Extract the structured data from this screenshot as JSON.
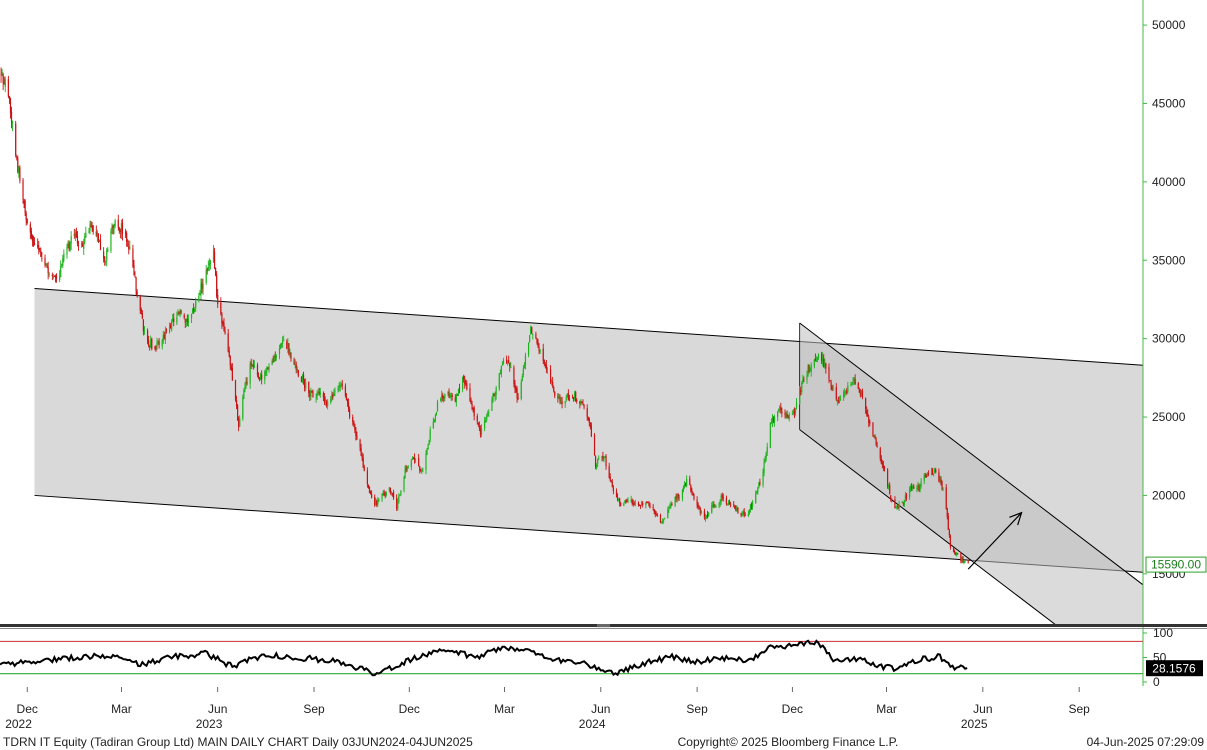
{
  "chart_data": [
    {
      "type": "candlestick",
      "price_axis": {
        "ticks": [
          50000,
          45000,
          40000,
          35000,
          30000,
          25000,
          20000,
          15000
        ],
        "tick_labels": [
          "50000",
          "45000",
          "40000",
          "35000",
          "30000",
          "25000",
          "20000",
          "15000"
        ],
        "range": [
          11800,
          51600
        ]
      },
      "last_price_label": "15590.00",
      "last_price_value": 15590,
      "time_axis": {
        "range": [
          "2022-11-05",
          "2025-11-01"
        ],
        "month_ticks": [
          {
            "label": "Dec",
            "date": "2022-12-01"
          },
          {
            "label": "Mar",
            "date": "2023-03-01"
          },
          {
            "label": "Jun",
            "date": "2023-06-01"
          },
          {
            "label": "Sep",
            "date": "2023-09-01"
          },
          {
            "label": "Dec",
            "date": "2023-12-01"
          },
          {
            "label": "Mar",
            "date": "2024-03-01"
          },
          {
            "label": "Jun",
            "date": "2024-06-01"
          },
          {
            "label": "Sep",
            "date": "2024-09-01"
          },
          {
            "label": "Dec",
            "date": "2024-12-01"
          },
          {
            "label": "Mar",
            "date": "2025-03-01"
          },
          {
            "label": "Jun",
            "date": "2025-06-01"
          },
          {
            "label": "Sep",
            "date": "2025-09-01"
          }
        ],
        "year_ticks": [
          {
            "label": "2022",
            "date": "2022-12-01"
          },
          {
            "label": "2023",
            "date": "2023-06-01"
          },
          {
            "label": "2024",
            "date": "2024-06-01"
          },
          {
            "label": "2025",
            "date": "2025-06-01"
          }
        ]
      },
      "price_path": [
        [
          "2022-11-05",
          47000
        ],
        [
          "2022-11-12",
          46000
        ],
        [
          "2022-11-18",
          43000
        ],
        [
          "2022-11-24",
          40000
        ],
        [
          "2022-11-30",
          37500
        ],
        [
          "2022-12-08",
          36000
        ],
        [
          "2022-12-16",
          35000
        ],
        [
          "2022-12-24",
          34000
        ],
        [
          "2022-12-30",
          33500
        ],
        [
          "2023-01-06",
          35500
        ],
        [
          "2023-01-14",
          36500
        ],
        [
          "2023-01-22",
          36000
        ],
        [
          "2023-01-30",
          37000
        ],
        [
          "2023-02-06",
          36500
        ],
        [
          "2023-02-14",
          35000
        ],
        [
          "2023-02-22",
          37500
        ],
        [
          "2023-03-01",
          37000
        ],
        [
          "2023-03-08",
          36000
        ],
        [
          "2023-03-16",
          33000
        ],
        [
          "2023-03-24",
          30000
        ],
        [
          "2023-04-01",
          29500
        ],
        [
          "2023-04-10",
          30000
        ],
        [
          "2023-04-18",
          31000
        ],
        [
          "2023-04-26",
          31500
        ],
        [
          "2023-05-04",
          31000
        ],
        [
          "2023-05-12",
          32500
        ],
        [
          "2023-05-20",
          34000
        ],
        [
          "2023-05-28",
          35500
        ],
        [
          "2023-06-01",
          32000
        ],
        [
          "2023-06-06",
          31000
        ],
        [
          "2023-06-12",
          29000
        ],
        [
          "2023-06-17",
          26500
        ],
        [
          "2023-06-21",
          24500
        ],
        [
          "2023-06-26",
          26500
        ],
        [
          "2023-07-03",
          28500
        ],
        [
          "2023-07-11",
          27500
        ],
        [
          "2023-07-19",
          28000
        ],
        [
          "2023-07-27",
          29000
        ],
        [
          "2023-08-04",
          30000
        ],
        [
          "2023-08-12",
          28500
        ],
        [
          "2023-08-20",
          27500
        ],
        [
          "2023-08-28",
          26500
        ],
        [
          "2023-09-05",
          26500
        ],
        [
          "2023-09-13",
          26000
        ],
        [
          "2023-09-21",
          26500
        ],
        [
          "2023-09-28",
          27000
        ],
        [
          "2023-10-06",
          25000
        ],
        [
          "2023-10-13",
          23500
        ],
        [
          "2023-10-21",
          21000
        ],
        [
          "2023-10-28",
          19300
        ],
        [
          "2023-11-05",
          20000
        ],
        [
          "2023-11-12",
          20500
        ],
        [
          "2023-11-19",
          19300
        ],
        [
          "2023-11-27",
          21500
        ],
        [
          "2023-12-05",
          22500
        ],
        [
          "2023-12-13",
          21500
        ],
        [
          "2023-12-21",
          24000
        ],
        [
          "2023-12-29",
          26000
        ],
        [
          "2024-01-06",
          26500
        ],
        [
          "2024-01-14",
          26000
        ],
        [
          "2024-01-22",
          27500
        ],
        [
          "2024-01-30",
          25500
        ],
        [
          "2024-02-07",
          24000
        ],
        [
          "2024-02-15",
          25500
        ],
        [
          "2024-02-23",
          27000
        ],
        [
          "2024-03-01",
          29000
        ],
        [
          "2024-03-08",
          28000
        ],
        [
          "2024-03-14",
          26000
        ],
        [
          "2024-03-20",
          28500
        ],
        [
          "2024-03-26",
          30500
        ],
        [
          "2024-04-02",
          29500
        ],
        [
          "2024-04-10",
          28000
        ],
        [
          "2024-04-18",
          26500
        ],
        [
          "2024-04-26",
          26000
        ],
        [
          "2024-05-04",
          26500
        ],
        [
          "2024-05-12",
          26000
        ],
        [
          "2024-05-20",
          25000
        ],
        [
          "2024-05-27",
          22000
        ],
        [
          "2024-06-04",
          22500
        ],
        [
          "2024-06-12",
          20500
        ],
        [
          "2024-06-20",
          19500
        ],
        [
          "2024-06-28",
          19800
        ],
        [
          "2024-07-06",
          19300
        ],
        [
          "2024-07-14",
          19500
        ],
        [
          "2024-07-22",
          19000
        ],
        [
          "2024-07-30",
          18200
        ],
        [
          "2024-08-07",
          19500
        ],
        [
          "2024-08-15",
          20000
        ],
        [
          "2024-08-23",
          21000
        ],
        [
          "2024-08-31",
          19500
        ],
        [
          "2024-09-08",
          18500
        ],
        [
          "2024-09-16",
          19300
        ],
        [
          "2024-09-24",
          19800
        ],
        [
          "2024-10-02",
          19500
        ],
        [
          "2024-10-10",
          19000
        ],
        [
          "2024-10-18",
          18700
        ],
        [
          "2024-10-26",
          19800
        ],
        [
          "2024-11-03",
          21500
        ],
        [
          "2024-11-10",
          24500
        ],
        [
          "2024-11-18",
          25500
        ],
        [
          "2024-11-26",
          25000
        ],
        [
          "2024-12-04",
          25500
        ],
        [
          "2024-12-12",
          27500
        ],
        [
          "2024-12-20",
          28500
        ],
        [
          "2024-12-28",
          29000
        ],
        [
          "2025-01-05",
          27500
        ],
        [
          "2025-01-12",
          26000
        ],
        [
          "2025-01-20",
          26500
        ],
        [
          "2025-01-28",
          27500
        ],
        [
          "2025-02-05",
          26500
        ],
        [
          "2025-02-13",
          24500
        ],
        [
          "2025-02-21",
          23000
        ],
        [
          "2025-03-01",
          21000
        ],
        [
          "2025-03-08",
          19000
        ],
        [
          "2025-03-16",
          19500
        ],
        [
          "2025-03-24",
          20500
        ],
        [
          "2025-04-01",
          20500
        ],
        [
          "2025-04-09",
          21500
        ],
        [
          "2025-04-17",
          21500
        ],
        [
          "2025-04-25",
          20300
        ],
        [
          "2025-05-01",
          16700
        ],
        [
          "2025-05-10",
          16000
        ],
        [
          "2025-05-18",
          15590
        ]
      ],
      "wide_channel": {
        "upper": [
          [
            "2022-12-08",
            33200
          ],
          [
            "2025-11-01",
            28300
          ]
        ],
        "lower": [
          [
            "2022-12-08",
            20000
          ],
          [
            "2025-11-01",
            15100
          ]
        ]
      },
      "steep_channel": {
        "upper": [
          [
            "2024-12-08",
            31000
          ],
          [
            "2025-11-01",
            14300
          ]
        ],
        "lower": [
          [
            "2024-12-08",
            24200
          ],
          [
            "2025-11-01",
            7500
          ]
        ]
      },
      "arrow": {
        "from": [
          "2025-05-18",
          15300
        ],
        "to": [
          "2025-07-08",
          18900
        ]
      }
    },
    {
      "type": "line",
      "name": "rsi",
      "y_range": [
        0,
        100
      ],
      "ticks": [
        100,
        50,
        0
      ],
      "tick_labels": [
        "100",
        "50",
        "0"
      ],
      "upper_line": 83,
      "lower_line": 17,
      "last_value": 28.1576,
      "last_value_label": "28.1576",
      "series": [
        [
          "2022-11-05",
          35
        ],
        [
          "2022-12-01",
          40
        ],
        [
          "2023-01-01",
          48
        ],
        [
          "2023-02-15",
          55
        ],
        [
          "2023-03-20",
          35
        ],
        [
          "2023-04-20",
          52
        ],
        [
          "2023-05-20",
          58
        ],
        [
          "2023-06-15",
          32
        ],
        [
          "2023-07-15",
          55
        ],
        [
          "2023-08-15",
          50
        ],
        [
          "2023-09-15",
          45
        ],
        [
          "2023-10-10",
          30
        ],
        [
          "2023-10-28",
          18
        ],
        [
          "2023-11-20",
          35
        ],
        [
          "2023-12-15",
          55
        ],
        [
          "2024-01-10",
          65
        ],
        [
          "2024-02-01",
          50
        ],
        [
          "2024-03-01",
          72
        ],
        [
          "2024-03-20",
          65
        ],
        [
          "2024-04-20",
          45
        ],
        [
          "2024-05-15",
          40
        ],
        [
          "2024-06-01",
          25
        ],
        [
          "2024-06-15",
          18
        ],
        [
          "2024-07-15",
          40
        ],
        [
          "2024-08-10",
          52
        ],
        [
          "2024-08-30",
          40
        ],
        [
          "2024-09-20",
          50
        ],
        [
          "2024-10-20",
          45
        ],
        [
          "2024-11-10",
          70
        ],
        [
          "2024-12-01",
          75
        ],
        [
          "2024-12-25",
          82
        ],
        [
          "2025-01-10",
          42
        ],
        [
          "2025-02-01",
          48
        ],
        [
          "2025-02-25",
          32
        ],
        [
          "2025-03-10",
          28
        ],
        [
          "2025-04-01",
          45
        ],
        [
          "2025-04-20",
          52
        ],
        [
          "2025-05-05",
          30
        ],
        [
          "2025-05-18",
          28.1576
        ]
      ]
    }
  ],
  "footer": {
    "left": "TDRN IT Equity (Tadiran Group Ltd) MAIN DAILY CHART  Daily 03JUN2024-04JUN2025",
    "center": "Copyright© 2025 Bloomberg Finance L.P.",
    "right": "04-Jun-2025 07:29:09"
  },
  "colors": {
    "up": "#1eb31e",
    "down": "#cc1111",
    "channel_fill": "#d9d9d9",
    "steep_fill": "#bdbdbd",
    "axis": "#44bb44",
    "rsi_upper": "#cc3333",
    "rsi_lower": "#33aa33"
  }
}
